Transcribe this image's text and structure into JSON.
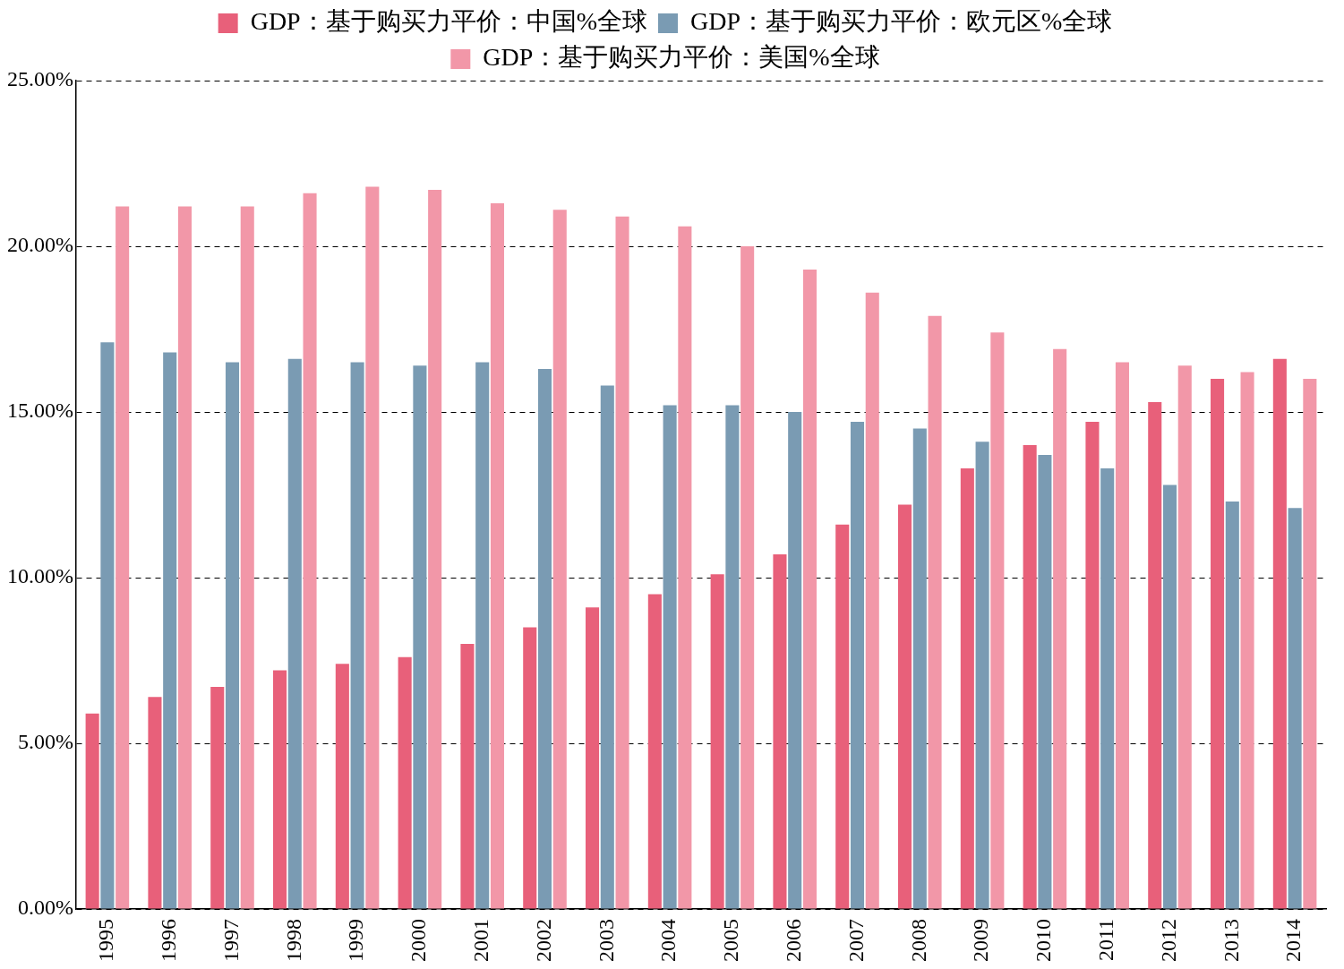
{
  "chart_data": {
    "type": "bar",
    "categories": [
      "1995",
      "1996",
      "1997",
      "1998",
      "1999",
      "2000",
      "2001",
      "2002",
      "2003",
      "2004",
      "2005",
      "2006",
      "2007",
      "2008",
      "2009",
      "2010",
      "2011",
      "2012",
      "2013",
      "2014"
    ],
    "series": [
      {
        "name": "GDP：基于购买力平价：中国%全球",
        "color": "#e8607a",
        "values": [
          5.9,
          6.4,
          6.7,
          7.2,
          7.4,
          7.6,
          8.0,
          8.5,
          9.1,
          9.5,
          10.1,
          10.7,
          11.6,
          12.2,
          13.3,
          14.0,
          14.7,
          15.3,
          16.0,
          16.6
        ]
      },
      {
        "name": "GDP：基于购买力平价：欧元区%全球",
        "color": "#7a9bb3",
        "values": [
          17.1,
          16.8,
          16.5,
          16.6,
          16.5,
          16.4,
          16.5,
          16.3,
          15.8,
          15.2,
          15.2,
          15.0,
          14.7,
          14.5,
          14.1,
          13.7,
          13.3,
          12.8,
          12.3,
          12.1
        ]
      },
      {
        "name": "GDP：基于购买力平价：美国%全球",
        "color": "#f297a8",
        "values": [
          21.2,
          21.2,
          21.2,
          21.6,
          21.8,
          21.7,
          21.3,
          21.1,
          20.9,
          20.6,
          20.0,
          19.3,
          18.6,
          17.9,
          17.4,
          16.9,
          16.5,
          16.4,
          16.2,
          16.0
        ]
      }
    ],
    "ylim": [
      0,
      25
    ],
    "yticks": [
      {
        "value": 0,
        "label": "0.00%"
      },
      {
        "value": 5,
        "label": "5.00%"
      },
      {
        "value": 10,
        "label": "10.00%"
      },
      {
        "value": 15,
        "label": "15.00%"
      },
      {
        "value": 20,
        "label": "20.00%"
      },
      {
        "value": 25,
        "label": "25.00%"
      }
    ],
    "grid": "y",
    "legend": "top"
  }
}
